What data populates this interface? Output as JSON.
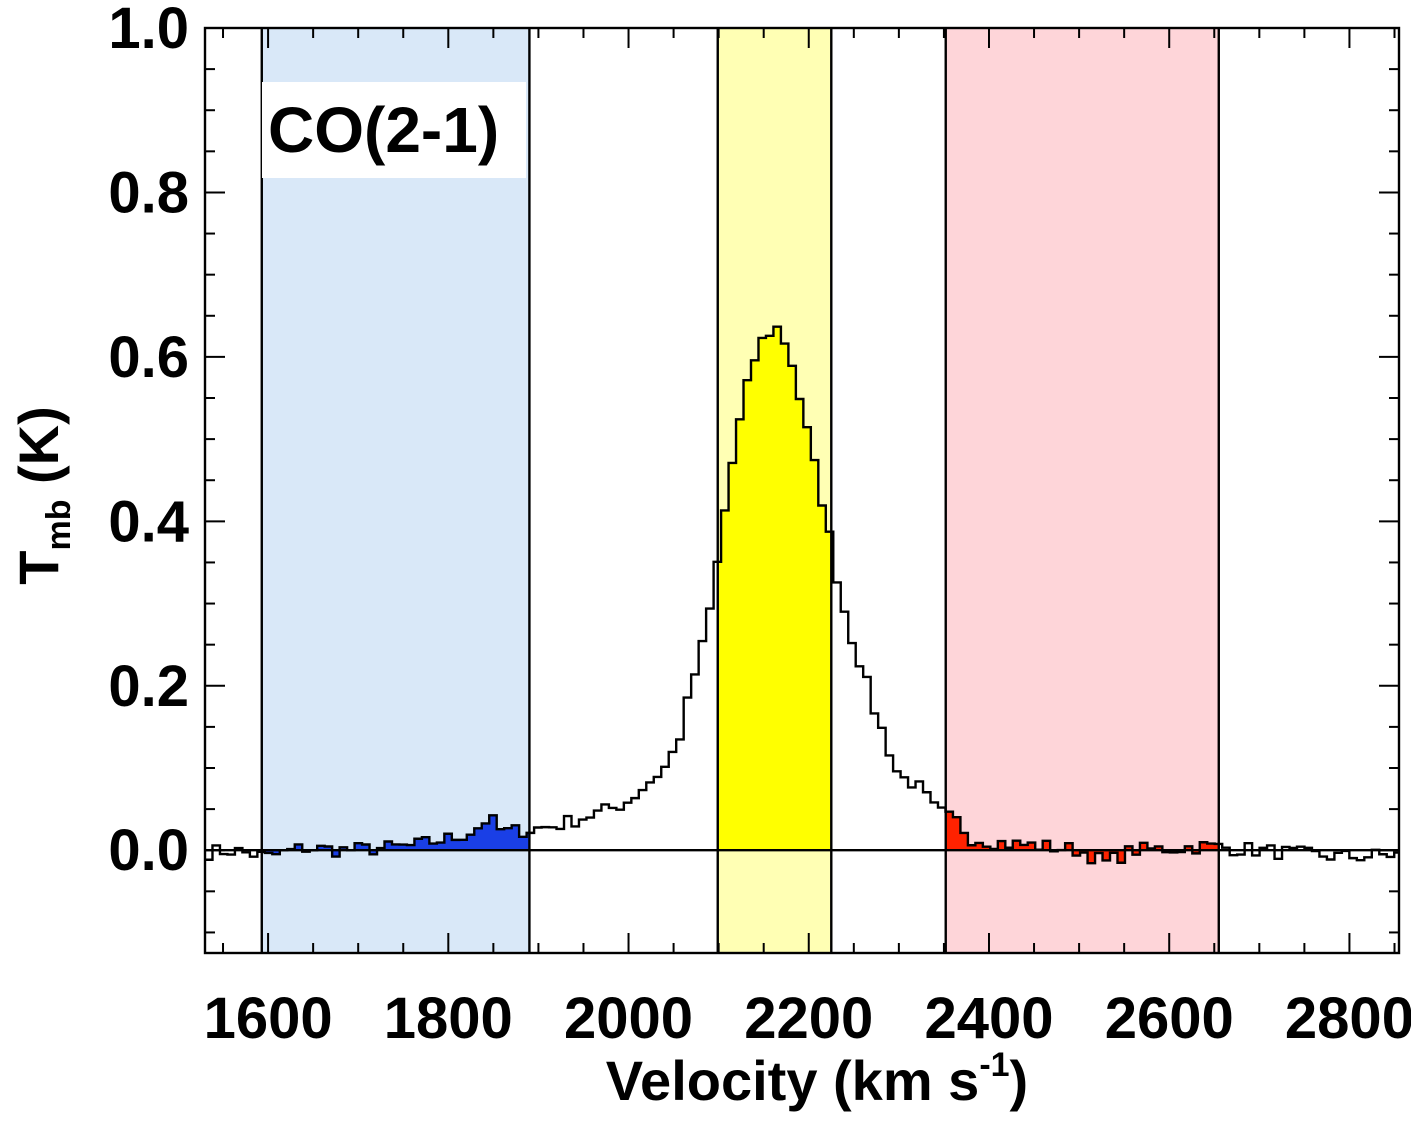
{
  "chart_data": {
    "type": "line",
    "style": "histogram-step",
    "panel_label": "CO(2-1)",
    "xlabel": {
      "main": "Velocity (km s",
      "sup": "-1",
      "tail": ")"
    },
    "ylabel": {
      "main": "T",
      "sub": "mb",
      "tail": " (K)"
    },
    "xlim": [
      1530,
      2855
    ],
    "ylim": [
      -0.125,
      1.0
    ],
    "x_ticks": [
      1600,
      1800,
      2000,
      2200,
      2400,
      2600,
      2800
    ],
    "x_tick_labels": [
      "1600",
      "1800",
      "2000",
      "2200",
      "2400",
      "2600",
      "2800"
    ],
    "y_ticks": [
      0.0,
      0.2,
      0.4,
      0.6,
      0.8,
      1.0
    ],
    "y_tick_labels": [
      "0.0",
      "0.2",
      "0.4",
      "0.6",
      "0.8",
      "1.0"
    ],
    "x_minor_step": 50,
    "y_minor_step": 0.05,
    "grid": false,
    "colors": {
      "line": "#000000",
      "blue_band": "#d9e8f8",
      "blue_fill": "#1a3fe6",
      "yellow_band": "#ffffb4",
      "yellow_fill": "#ffff00",
      "red_band": "#fed5d9",
      "red_fill": "#ff2200"
    },
    "bands": [
      {
        "id": "blue",
        "x0": 1593,
        "x1": 1890
      },
      {
        "id": "yellow",
        "x0": 2099,
        "x1": 2225
      },
      {
        "id": "red",
        "x0": 2352,
        "x1": 2655
      }
    ],
    "velocity_step": 8.3,
    "spectrum_anchors": [
      [
        1530,
        -0.003
      ],
      [
        1560,
        0.0
      ],
      [
        1600,
        -0.008
      ],
      [
        1640,
        0.003
      ],
      [
        1680,
        0.0
      ],
      [
        1720,
        0.002
      ],
      [
        1760,
        0.005
      ],
      [
        1790,
        0.012
      ],
      [
        1810,
        0.016
      ],
      [
        1830,
        0.025
      ],
      [
        1845,
        0.04
      ],
      [
        1860,
        0.022
      ],
      [
        1890,
        0.025
      ],
      [
        1920,
        0.03
      ],
      [
        1950,
        0.04
      ],
      [
        1980,
        0.05
      ],
      [
        2000,
        0.06
      ],
      [
        2020,
        0.08
      ],
      [
        2040,
        0.1
      ],
      [
        2055,
        0.13
      ],
      [
        2070,
        0.2
      ],
      [
        2085,
        0.26
      ],
      [
        2095,
        0.32
      ],
      [
        2105,
        0.4
      ],
      [
        2115,
        0.47
      ],
      [
        2125,
        0.53
      ],
      [
        2135,
        0.58
      ],
      [
        2145,
        0.615
      ],
      [
        2155,
        0.628
      ],
      [
        2163,
        0.638
      ],
      [
        2170,
        0.628
      ],
      [
        2180,
        0.6
      ],
      [
        2190,
        0.55
      ],
      [
        2200,
        0.5
      ],
      [
        2210,
        0.45
      ],
      [
        2220,
        0.4
      ],
      [
        2230,
        0.34
      ],
      [
        2240,
        0.29
      ],
      [
        2250,
        0.25
      ],
      [
        2260,
        0.22
      ],
      [
        2270,
        0.18
      ],
      [
        2280,
        0.15
      ],
      [
        2290,
        0.12
      ],
      [
        2300,
        0.09
      ],
      [
        2320,
        0.08
      ],
      [
        2340,
        0.05
      ],
      [
        2355,
        0.04
      ],
      [
        2365,
        0.035
      ],
      [
        2380,
        0.015
      ],
      [
        2420,
        0.008
      ],
      [
        2460,
        0.005
      ],
      [
        2500,
        0.0
      ],
      [
        2530,
        -0.015
      ],
      [
        2560,
        0.0
      ],
      [
        2600,
        0.002
      ],
      [
        2640,
        0.005
      ],
      [
        2700,
        0.0
      ],
      [
        2750,
        -0.005
      ],
      [
        2800,
        -0.008
      ],
      [
        2855,
        -0.005
      ]
    ]
  }
}
